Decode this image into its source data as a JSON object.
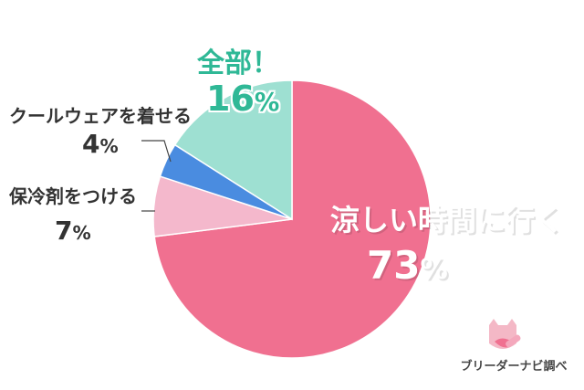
{
  "chart_data": {
    "type": "pie",
    "start_angle": "12 o'clock",
    "direction": "clockwise",
    "slices": [
      {
        "label": "涼しい時間に行く",
        "value": 73,
        "value_text": "73",
        "color": "#f07090"
      },
      {
        "label": "保冷剤をつける",
        "value": 7,
        "value_text": "7",
        "color": "#f4b8cc"
      },
      {
        "label": "クールウェアを着せる",
        "value": 4,
        "value_text": "4",
        "color": "#4a8ce0"
      },
      {
        "label": "全部！",
        "value": 16,
        "value_text": "16",
        "color": "#9ee0d2"
      }
    ],
    "unit": "%"
  },
  "watermark": {
    "text": "ブリーダーナビ調べ"
  }
}
